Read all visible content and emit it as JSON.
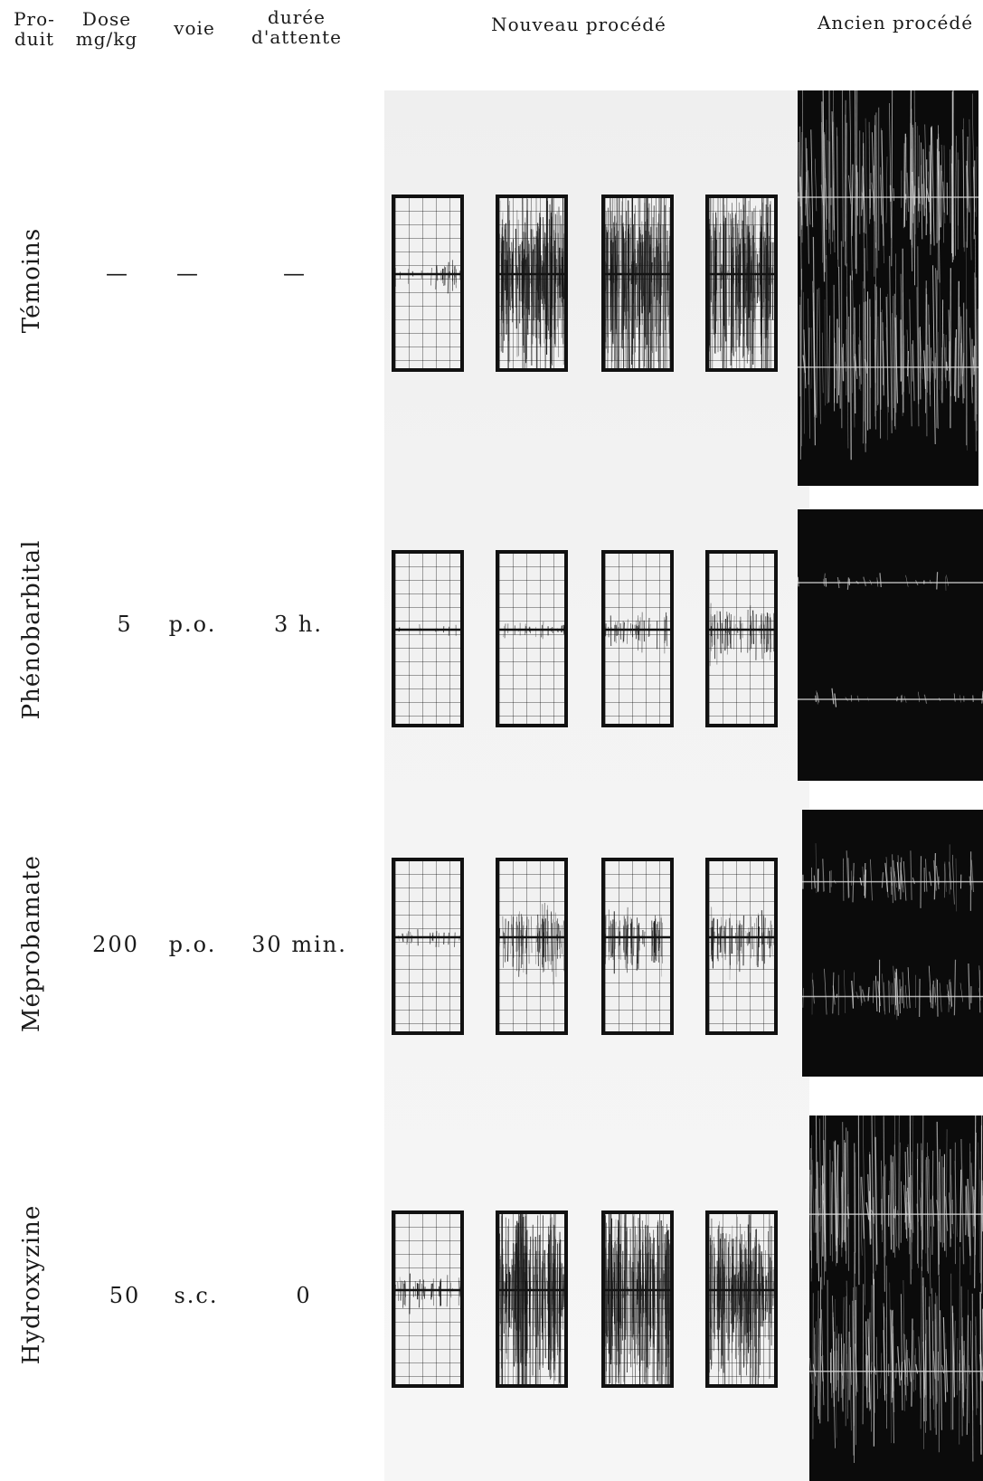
{
  "headers": {
    "produit": [
      "Pro-",
      "duit"
    ],
    "dose": [
      "Dose",
      "mg/kg"
    ],
    "voie": "voie",
    "duree": [
      "durée",
      "d'attente"
    ],
    "nouveau": "Nouveau procédé",
    "ancien": "Ancien procédé"
  },
  "rows": [
    {
      "produit": "Témoins",
      "dose": "—",
      "voie": "—",
      "duree": "—"
    },
    {
      "produit": "Phénobarbital",
      "dose": "5",
      "voie": "p.o.",
      "duree": "3 h."
    },
    {
      "produit": "Méprobamate",
      "dose": "200",
      "voie": "p.o.",
      "duree": "30 min."
    },
    {
      "produit": "Hydroxyzine",
      "dose": "50",
      "voie": "s.c.",
      "duree": "0"
    }
  ],
  "activity_levels": [
    [
      0.1,
      0.95,
      1.0,
      0.95
    ],
    [
      0.0,
      0.05,
      0.15,
      0.25
    ],
    [
      0.05,
      0.35,
      0.3,
      0.3
    ],
    [
      0.15,
      1.0,
      1.0,
      0.9
    ]
  ],
  "old_activity_levels": [
    1.0,
    0.1,
    0.4,
    1.0
  ]
}
